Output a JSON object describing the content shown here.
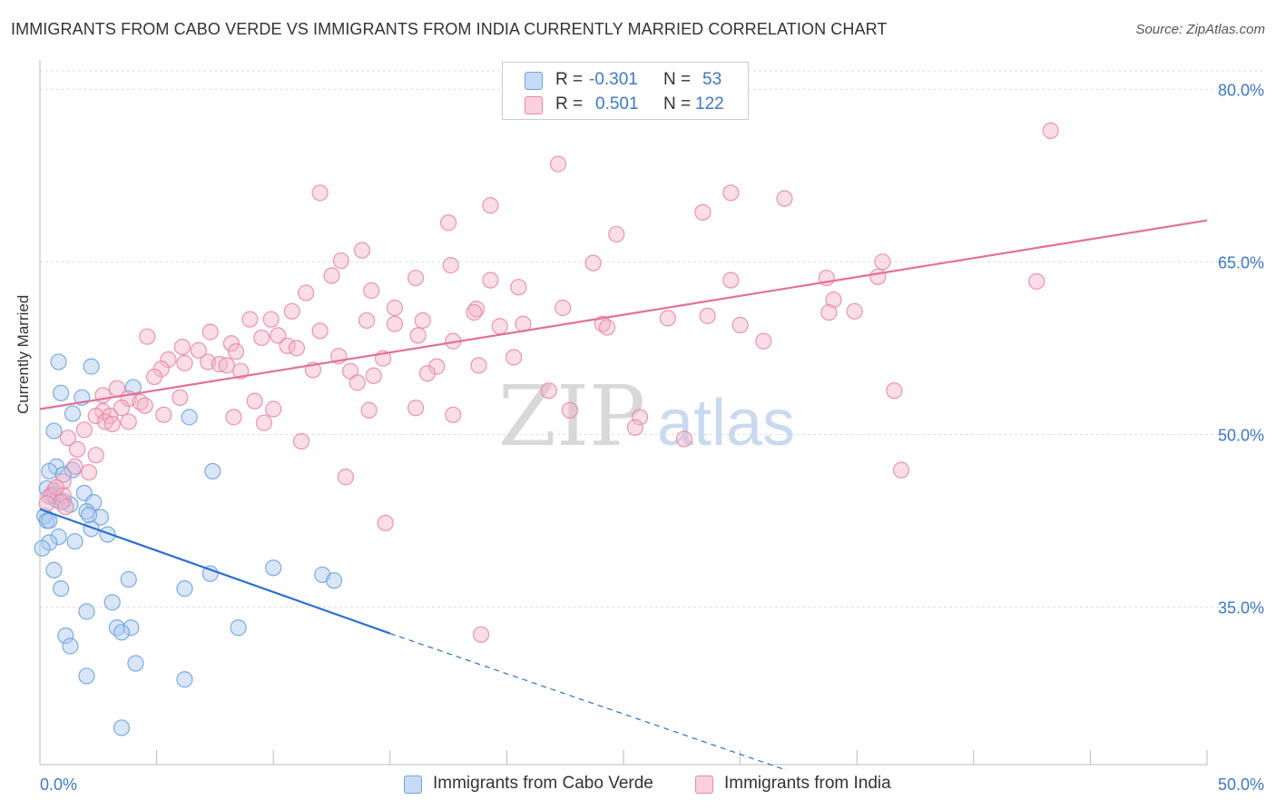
{
  "title": "IMMIGRANTS FROM CABO VERDE VS IMMIGRANTS FROM INDIA CURRENTLY MARRIED CORRELATION CHART",
  "source": "Source: ZipAtlas.com",
  "watermark": {
    "zip": "ZIP",
    "atlas": "atlas"
  },
  "legend_top": {
    "rows": [
      {
        "r_label": "R = ",
        "r_value": "-0.301",
        "n_label": "N = ",
        "n_value": "53",
        "color": "#a9c8f0"
      },
      {
        "r_label": "R = ",
        "r_value": "0.501",
        "n_label": "N = ",
        "n_value": "122",
        "color": "#f5b3c8"
      }
    ]
  },
  "chart_data": {
    "type": "scatter",
    "xlabel": "",
    "ylabel": "Currently Married",
    "x_ticks": [
      "0.0%",
      "50.0%"
    ],
    "y_ticks": [
      "35.0%",
      "50.0%",
      "65.0%",
      "80.0%"
    ],
    "xlim": [
      0,
      50
    ],
    "ylim": [
      21.3,
      81.6
    ],
    "grid": true,
    "legend_position": "bottom-center",
    "series": [
      {
        "name": "Immigrants from Cabo Verde",
        "color": "#6fa3e0",
        "fill": "#a9c8f0",
        "line_color": "#2a6fd0",
        "trend": {
          "x0": 0,
          "y0": 43.5,
          "x1": 15,
          "y1": 32.7,
          "dash_to_x": 32,
          "dash_to_y": 20.8
        },
        "points": [
          [
            0.8,
            56.3
          ],
          [
            2.2,
            55.9
          ],
          [
            0.9,
            53.6
          ],
          [
            1.8,
            53.2
          ],
          [
            4.0,
            54.1
          ],
          [
            1.4,
            51.8
          ],
          [
            6.4,
            51.5
          ],
          [
            0.6,
            50.3
          ],
          [
            0.7,
            47.2
          ],
          [
            1.4,
            46.9
          ],
          [
            0.4,
            46.8
          ],
          [
            7.4,
            46.8
          ],
          [
            1.0,
            46.5
          ],
          [
            0.3,
            45.3
          ],
          [
            0.6,
            44.8
          ],
          [
            1.9,
            44.9
          ],
          [
            0.7,
            44.3
          ],
          [
            1.3,
            43.9
          ],
          [
            2.3,
            44.1
          ],
          [
            0.2,
            42.9
          ],
          [
            0.3,
            42.5
          ],
          [
            0.4,
            42.5
          ],
          [
            2.0,
            43.3
          ],
          [
            2.6,
            42.8
          ],
          [
            2.2,
            41.8
          ],
          [
            2.9,
            41.3
          ],
          [
            0.8,
            41.1
          ],
          [
            0.4,
            40.6
          ],
          [
            1.5,
            40.7
          ],
          [
            0.1,
            40.1
          ],
          [
            0.6,
            38.2
          ],
          [
            10.0,
            38.4
          ],
          [
            7.3,
            37.9
          ],
          [
            12.1,
            37.8
          ],
          [
            3.8,
            37.4
          ],
          [
            12.6,
            37.3
          ],
          [
            0.9,
            36.6
          ],
          [
            6.2,
            36.6
          ],
          [
            3.1,
            35.4
          ],
          [
            2.0,
            34.6
          ],
          [
            3.3,
            33.2
          ],
          [
            3.9,
            33.2
          ],
          [
            8.5,
            33.2
          ],
          [
            3.5,
            32.8
          ],
          [
            1.1,
            32.5
          ],
          [
            1.3,
            31.6
          ],
          [
            4.1,
            30.1
          ],
          [
            2.0,
            29.0
          ],
          [
            6.2,
            28.7
          ],
          [
            3.5,
            24.5
          ],
          [
            0.5,
            44.7
          ],
          [
            2.1,
            43.0
          ],
          [
            1.0,
            44.2
          ]
        ]
      },
      {
        "name": "Immigrants from India",
        "color": "#e889a8",
        "fill": "#f5b3c8",
        "line_color": "#e2709a",
        "trend": {
          "x0": 0,
          "y0": 52.2,
          "x1": 50,
          "y1": 68.6
        },
        "points": [
          [
            43.3,
            76.4
          ],
          [
            22.2,
            73.5
          ],
          [
            12.0,
            71.0
          ],
          [
            29.6,
            71.0
          ],
          [
            31.9,
            70.5
          ],
          [
            19.3,
            69.9
          ],
          [
            28.4,
            69.3
          ],
          [
            17.5,
            68.4
          ],
          [
            24.7,
            67.4
          ],
          [
            13.8,
            66.0
          ],
          [
            12.9,
            65.1
          ],
          [
            17.6,
            64.7
          ],
          [
            23.7,
            64.9
          ],
          [
            36.1,
            65.0
          ],
          [
            12.5,
            63.8
          ],
          [
            16.1,
            63.6
          ],
          [
            19.3,
            63.4
          ],
          [
            29.6,
            63.4
          ],
          [
            33.7,
            63.6
          ],
          [
            35.9,
            63.7
          ],
          [
            42.7,
            63.3
          ],
          [
            14.2,
            62.5
          ],
          [
            20.5,
            62.8
          ],
          [
            11.4,
            62.3
          ],
          [
            34.0,
            61.7
          ],
          [
            10.8,
            60.7
          ],
          [
            15.2,
            61.0
          ],
          [
            18.7,
            60.9
          ],
          [
            22.4,
            61.0
          ],
          [
            18.6,
            60.6
          ],
          [
            33.8,
            60.6
          ],
          [
            34.9,
            60.7
          ],
          [
            26.9,
            60.1
          ],
          [
            28.6,
            60.3
          ],
          [
            9.0,
            60.0
          ],
          [
            9.9,
            60.0
          ],
          [
            14.0,
            59.9
          ],
          [
            15.2,
            59.6
          ],
          [
            16.4,
            59.9
          ],
          [
            19.7,
            59.4
          ],
          [
            20.7,
            59.6
          ],
          [
            24.1,
            59.6
          ],
          [
            30.0,
            59.5
          ],
          [
            24.3,
            59.3
          ],
          [
            12.0,
            59.0
          ],
          [
            7.3,
            58.9
          ],
          [
            9.5,
            58.4
          ],
          [
            10.2,
            58.6
          ],
          [
            16.2,
            58.6
          ],
          [
            31.0,
            58.1
          ],
          [
            4.6,
            58.5
          ],
          [
            17.7,
            58.1
          ],
          [
            8.2,
            57.9
          ],
          [
            10.6,
            57.7
          ],
          [
            11.0,
            57.5
          ],
          [
            6.1,
            57.6
          ],
          [
            6.8,
            57.3
          ],
          [
            8.4,
            57.2
          ],
          [
            12.8,
            56.8
          ],
          [
            14.7,
            56.6
          ],
          [
            20.3,
            56.7
          ],
          [
            5.5,
            56.5
          ],
          [
            6.2,
            56.2
          ],
          [
            7.2,
            56.3
          ],
          [
            7.7,
            56.1
          ],
          [
            8.0,
            56.0
          ],
          [
            17.0,
            55.9
          ],
          [
            18.8,
            56.0
          ],
          [
            5.2,
            55.7
          ],
          [
            8.6,
            55.5
          ],
          [
            11.7,
            55.6
          ],
          [
            13.3,
            55.5
          ],
          [
            16.6,
            55.3
          ],
          [
            14.3,
            55.1
          ],
          [
            4.9,
            55.0
          ],
          [
            13.6,
            54.5
          ],
          [
            3.3,
            54.0
          ],
          [
            2.7,
            53.4
          ],
          [
            36.6,
            53.8
          ],
          [
            21.8,
            53.8
          ],
          [
            3.8,
            53.1
          ],
          [
            4.3,
            52.8
          ],
          [
            6.0,
            53.2
          ],
          [
            9.2,
            52.9
          ],
          [
            3.5,
            52.3
          ],
          [
            4.5,
            52.5
          ],
          [
            2.7,
            52.0
          ],
          [
            10.0,
            52.2
          ],
          [
            14.1,
            52.1
          ],
          [
            16.1,
            52.3
          ],
          [
            22.7,
            52.1
          ],
          [
            5.3,
            51.7
          ],
          [
            2.4,
            51.6
          ],
          [
            3.0,
            51.6
          ],
          [
            8.3,
            51.5
          ],
          [
            17.7,
            51.7
          ],
          [
            25.7,
            51.5
          ],
          [
            2.8,
            51.1
          ],
          [
            3.8,
            51.1
          ],
          [
            9.6,
            51.0
          ],
          [
            25.5,
            50.6
          ],
          [
            1.9,
            50.4
          ],
          [
            1.2,
            49.7
          ],
          [
            11.2,
            49.4
          ],
          [
            27.6,
            49.6
          ],
          [
            1.6,
            48.7
          ],
          [
            1.5,
            47.2
          ],
          [
            2.1,
            46.7
          ],
          [
            36.9,
            46.9
          ],
          [
            13.1,
            46.3
          ],
          [
            1.0,
            45.9
          ],
          [
            0.6,
            45.1
          ],
          [
            0.4,
            44.6
          ],
          [
            1.0,
            44.7
          ],
          [
            0.9,
            44.1
          ],
          [
            0.3,
            44.0
          ],
          [
            1.1,
            43.7
          ],
          [
            14.8,
            42.3
          ],
          [
            18.9,
            32.6
          ],
          [
            2.4,
            48.2
          ],
          [
            3.1,
            50.9
          ],
          [
            0.7,
            45.4
          ]
        ]
      }
    ]
  }
}
